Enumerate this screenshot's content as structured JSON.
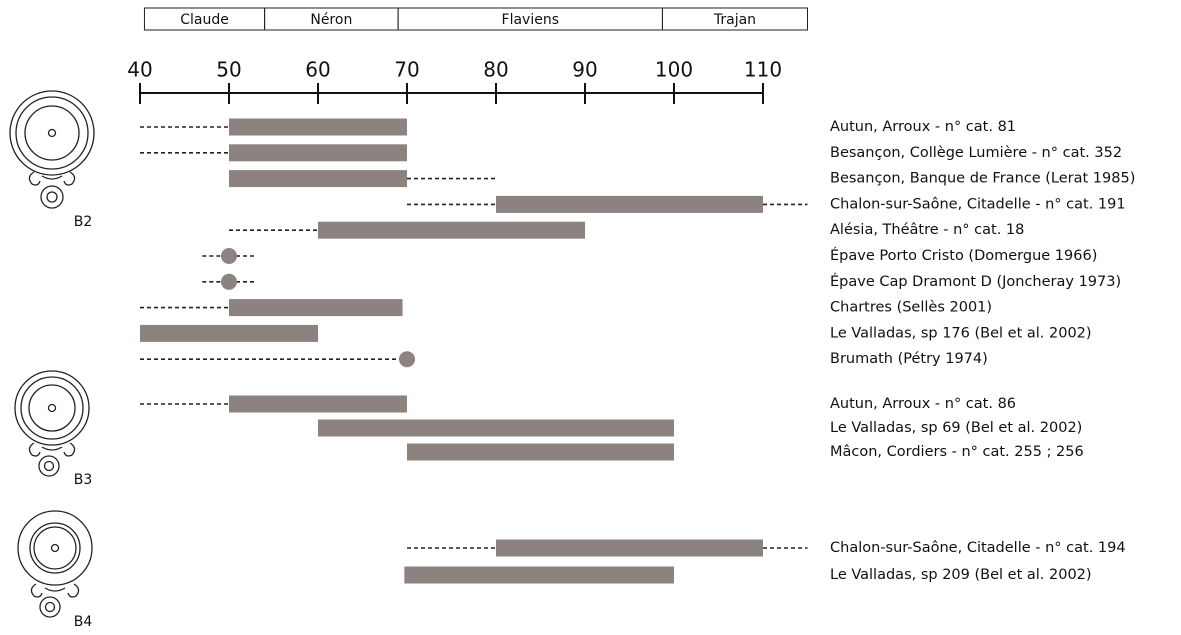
{
  "chart_data": {
    "type": "timeline",
    "periods": [
      {
        "name": "Claude",
        "start": 40.5,
        "end": 54
      },
      {
        "name": "Néron",
        "start": 54,
        "end": 69
      },
      {
        "name": "Flaviens",
        "start": 69,
        "end": 98.7
      },
      {
        "name": "Trajan",
        "start": 98.7,
        "end": 115
      }
    ],
    "xlim": [
      40,
      110
    ],
    "xticks": [
      40,
      50,
      60,
      70,
      80,
      90,
      100,
      110
    ],
    "bar_color": "#8c8380",
    "groups": [
      {
        "name": "B2",
        "rows": [
          {
            "label": "Autun, Arroux - n° cat. 81",
            "start": 50,
            "end": 70,
            "dashed_start": 40
          },
          {
            "label": "Besançon, Collège Lumière - n° cat. 352",
            "start": 50,
            "end": 70,
            "dashed_start": 40
          },
          {
            "label": "Besançon, Banque de France (Lerat 1985)",
            "start": 50,
            "end": 70,
            "dashed_end": 80
          },
          {
            "label": "Chalon-sur-Saône, Citadelle - n° cat. 191",
            "start": 80,
            "end": 110,
            "dashed_start": 70,
            "dashed_end": 115
          },
          {
            "label": "Alésia, Théâtre - n° cat. 18",
            "start": 60,
            "end": 90,
            "dashed_start": 50
          },
          {
            "label": "Épave Porto Cristo (Domergue 1966)",
            "point": 50,
            "dashed_start": 47,
            "dashed_end": 53
          },
          {
            "label": "Épave Cap Dramont D (Joncheray 1973)",
            "point": 50,
            "dashed_start": 47,
            "dashed_end": 53
          },
          {
            "label": "Chartres (Sellès 2001)",
            "start": 50,
            "end": 69.5,
            "dashed_start": 40
          },
          {
            "label": "Le Valladas, sp 176 (Bel et al. 2002)",
            "start": 40,
            "end": 60
          },
          {
            "label": "Brumath (Pétry 1974)",
            "point": 70,
            "dashed_start": 40
          }
        ]
      },
      {
        "name": "B3",
        "rows": [
          {
            "label": "Autun, Arroux - n° cat. 86",
            "start": 50,
            "end": 70,
            "dashed_start": 40
          },
          {
            "label": "Le Valladas, sp 69 (Bel et al. 2002)",
            "start": 60,
            "end": 100
          },
          {
            "label": "Mâcon, Cordiers - n° cat. 255 ; 256",
            "start": 70,
            "end": 100
          }
        ]
      },
      {
        "name": "B4",
        "rows": [
          {
            "label": "Chalon-sur-Saône, Citadelle - n° cat. 194",
            "start": 80,
            "end": 110,
            "dashed_start": 70,
            "dashed_end": 115
          },
          {
            "label": "Le Valladas, sp 209 (Bel et al. 2002)",
            "start": 69.7,
            "end": 100
          }
        ]
      }
    ]
  }
}
